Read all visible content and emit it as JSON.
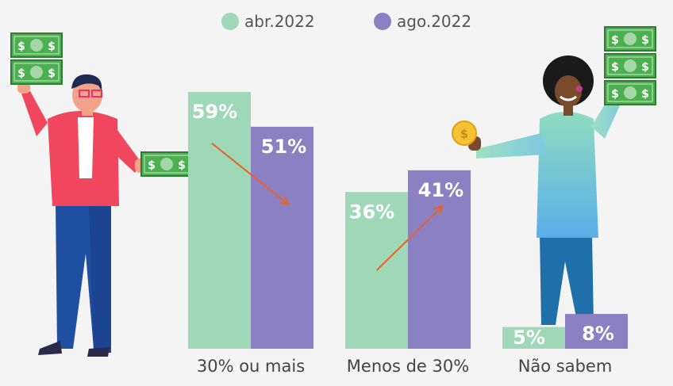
{
  "chart_data": {
    "type": "bar",
    "categories": [
      "30% ou mais",
      "Menos de 30%",
      "Não sabem"
    ],
    "series": [
      {
        "name": "abr.2022",
        "values": [
          59,
          36,
          5
        ],
        "labels": [
          "59%",
          "36%",
          "5%"
        ],
        "color": "#9fd8b6"
      },
      {
        "name": "ago.2022",
        "values": [
          51,
          41,
          8
        ],
        "labels": [
          "51%",
          "41%",
          "8%"
        ],
        "color": "#8a80c2"
      }
    ],
    "ylim": [
      0,
      61
    ],
    "legend": "top-center",
    "grid": false,
    "annotations": [
      {
        "category": "30% ou mais",
        "type": "arrow-down",
        "color": "#e8622e"
      },
      {
        "category": "Menos de 30%",
        "type": "arrow-up",
        "color": "#e8622e"
      }
    ],
    "illustrations": [
      "person-holding-money-icon",
      "woman-holding-coin-icon"
    ]
  }
}
